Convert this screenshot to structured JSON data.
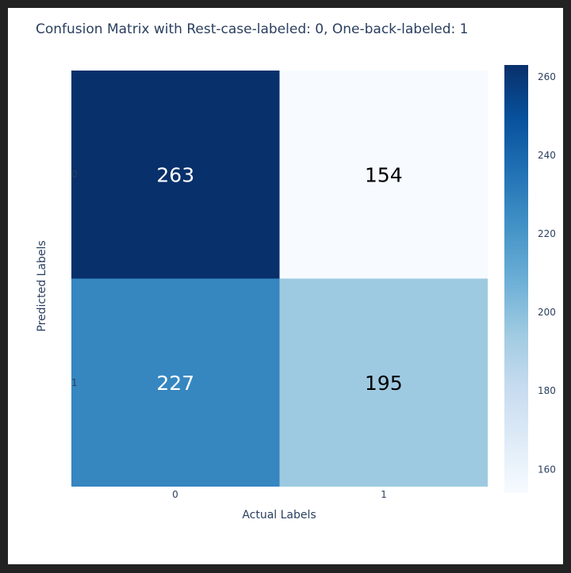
{
  "chart_data": {
    "type": "heatmap",
    "title": "Confusion Matrix with Rest-case-labeled: 0, One-back-labeled: 1",
    "xlabel": "Actual Labels",
    "ylabel": "Predicted Labels",
    "x_categories": [
      "0",
      "1"
    ],
    "y_categories": [
      "0",
      "1"
    ],
    "z": [
      [
        263,
        154
      ],
      [
        227,
        195
      ]
    ],
    "colorscale": "Blues",
    "zmin": 154,
    "zmax": 263,
    "colorbar_ticks": [
      160,
      180,
      200,
      220,
      240,
      260
    ]
  },
  "colors": {
    "text": "#2a3f5f",
    "dark_cell_text": "#ffffff",
    "light_cell_text": "#000000"
  }
}
